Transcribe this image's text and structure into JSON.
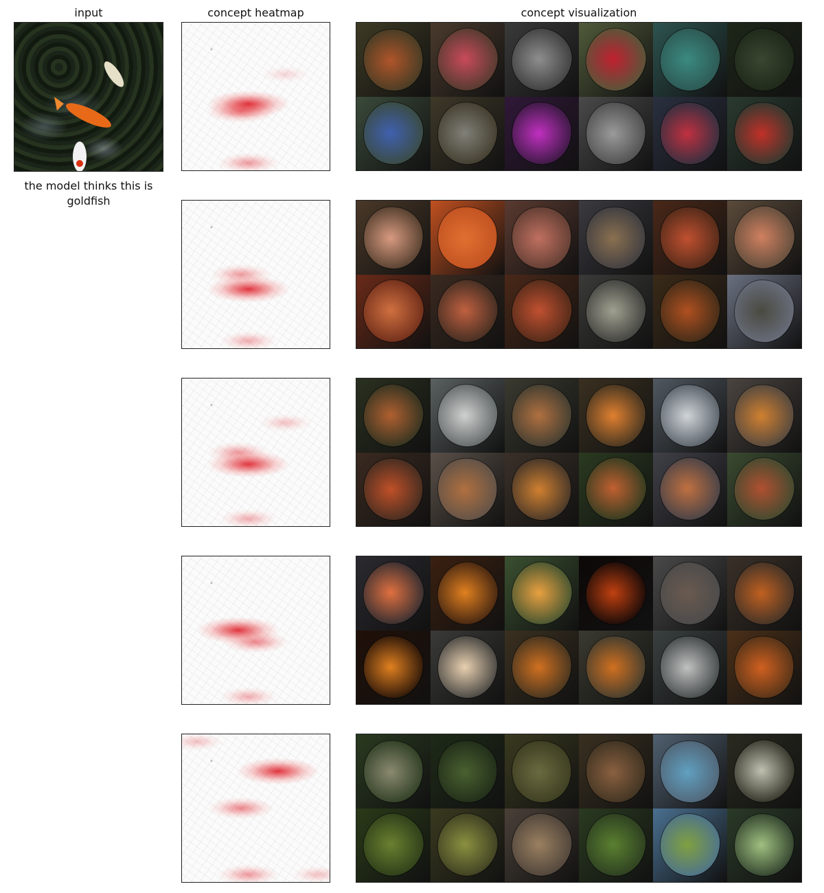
{
  "headers": {
    "input": "input",
    "heatmap": "concept heatmap",
    "visualization": "concept visualization"
  },
  "input": {
    "caption": "the model thinks this is goldfish"
  },
  "rows": [
    {
      "heat_spots": [
        [
          0.45,
          0.55,
          1.0
        ],
        [
          0.4,
          0.6,
          0.7
        ],
        [
          0.45,
          0.95,
          0.5
        ],
        [
          0.7,
          0.35,
          0.2
        ]
      ],
      "tiles": [
        {
          "bg": "#3d3a24",
          "fg": "#b0552a"
        },
        {
          "bg": "#4a3a2c",
          "fg": "#c84a5a"
        },
        {
          "bg": "#3a3a3a",
          "fg": "#8e8e8e"
        },
        {
          "bg": "#505a3a",
          "fg": "#c02030"
        },
        {
          "bg": "#2d5450",
          "fg": "#3a8a80"
        },
        {
          "bg": "#1d2618",
          "fg": "#3a4630"
        },
        {
          "bg": "#3a4a3a",
          "fg": "#4060b0"
        },
        {
          "bg": "#3e3828",
          "fg": "#808078"
        },
        {
          "bg": "#301838",
          "fg": "#c030c0"
        },
        {
          "bg": "#4a4a4a",
          "fg": "#9a9a9a"
        },
        {
          "bg": "#2a3040",
          "fg": "#c03040"
        },
        {
          "bg": "#2a3a30",
          "fg": "#c03028"
        }
      ]
    },
    {
      "heat_spots": [
        [
          0.45,
          0.6,
          1.0
        ],
        [
          0.4,
          0.5,
          0.5
        ],
        [
          0.45,
          0.95,
          0.4
        ]
      ],
      "tiles": [
        {
          "bg": "#4a3828",
          "fg": "#d89a80"
        },
        {
          "bg": "#c05020",
          "fg": "#e07030"
        },
        {
          "bg": "#5a3a30",
          "fg": "#c07060"
        },
        {
          "bg": "#3a3a40",
          "fg": "#8a7050"
        },
        {
          "bg": "#4a2818",
          "fg": "#c05030"
        },
        {
          "bg": "#5a4a3a",
          "fg": "#d08060"
        },
        {
          "bg": "#6a2a18",
          "fg": "#d07040"
        },
        {
          "bg": "#3a2a20",
          "fg": "#c06040"
        },
        {
          "bg": "#4a2818",
          "fg": "#c05030"
        },
        {
          "bg": "#3a3a38",
          "fg": "#a0a090"
        },
        {
          "bg": "#3a2a18",
          "fg": "#b05020"
        },
        {
          "bg": "#6a7080",
          "fg": "#4a4a40"
        }
      ]
    },
    {
      "heat_spots": [
        [
          0.45,
          0.58,
          1.0
        ],
        [
          0.38,
          0.5,
          0.5
        ],
        [
          0.7,
          0.3,
          0.3
        ],
        [
          0.45,
          0.95,
          0.4
        ]
      ],
      "tiles": [
        {
          "bg": "#2a3020",
          "fg": "#b06030"
        },
        {
          "bg": "#5a6060",
          "fg": "#d0d0d0"
        },
        {
          "bg": "#3a3a30",
          "fg": "#b07040"
        },
        {
          "bg": "#3a3020",
          "fg": "#e08030"
        },
        {
          "bg": "#505860",
          "fg": "#d0d4d8"
        },
        {
          "bg": "#4a4440",
          "fg": "#d08030"
        },
        {
          "bg": "#3a2a20",
          "fg": "#c05028"
        },
        {
          "bg": "#5a5048",
          "fg": "#b07040"
        },
        {
          "bg": "#3a3028",
          "fg": "#d08030"
        },
        {
          "bg": "#2a3a20",
          "fg": "#c06030"
        },
        {
          "bg": "#404048",
          "fg": "#c07040"
        },
        {
          "bg": "#3a4a30",
          "fg": "#b05030"
        }
      ]
    },
    {
      "heat_spots": [
        [
          0.38,
          0.5,
          1.0
        ],
        [
          0.5,
          0.58,
          0.6
        ],
        [
          0.45,
          0.95,
          0.4
        ]
      ],
      "tiles": [
        {
          "bg": "#2a2a30",
          "fg": "#e07040"
        },
        {
          "bg": "#3a2010",
          "fg": "#e08020"
        },
        {
          "bg": "#3a5030",
          "fg": "#e8a040"
        },
        {
          "bg": "#0e0808",
          "fg": "#c04010"
        },
        {
          "bg": "#4a4a4a",
          "fg": "#6a5a50"
        },
        {
          "bg": "#3a3028",
          "fg": "#c06020"
        },
        {
          "bg": "#201008",
          "fg": "#e08020"
        },
        {
          "bg": "#3a3a38",
          "fg": "#e8d0b0"
        },
        {
          "bg": "#3a3020",
          "fg": "#d07020"
        },
        {
          "bg": "#3a3a30",
          "fg": "#d07020"
        },
        {
          "bg": "#3a4040",
          "fg": "#c0c0c0"
        },
        {
          "bg": "#4a3018",
          "fg": "#d06020"
        }
      ]
    },
    {
      "heat_spots": [
        [
          0.65,
          0.25,
          1.0
        ],
        [
          0.4,
          0.5,
          0.6
        ],
        [
          0.45,
          0.95,
          0.5
        ],
        [
          0.1,
          0.05,
          0.3
        ],
        [
          0.92,
          0.95,
          0.3
        ]
      ],
      "tiles": [
        {
          "bg": "#2a3a20",
          "fg": "#8a8a70"
        },
        {
          "bg": "#1e2a18",
          "fg": "#4a6030"
        },
        {
          "bg": "#3a3a20",
          "fg": "#6a6a40"
        },
        {
          "bg": "#3a3020",
          "fg": "#8a6040"
        },
        {
          "bg": "#506070",
          "fg": "#60a0c0"
        },
        {
          "bg": "#2a2a20",
          "fg": "#c0c0b0"
        },
        {
          "bg": "#2a3a18",
          "fg": "#6a8030"
        },
        {
          "bg": "#3a3a20",
          "fg": "#8a9040"
        },
        {
          "bg": "#4a4038",
          "fg": "#9a8060"
        },
        {
          "bg": "#2a3a20",
          "fg": "#5a8030"
        },
        {
          "bg": "#4a7090",
          "fg": "#80a040"
        },
        {
          "bg": "#2a3a28",
          "fg": "#a0c080"
        }
      ]
    }
  ]
}
